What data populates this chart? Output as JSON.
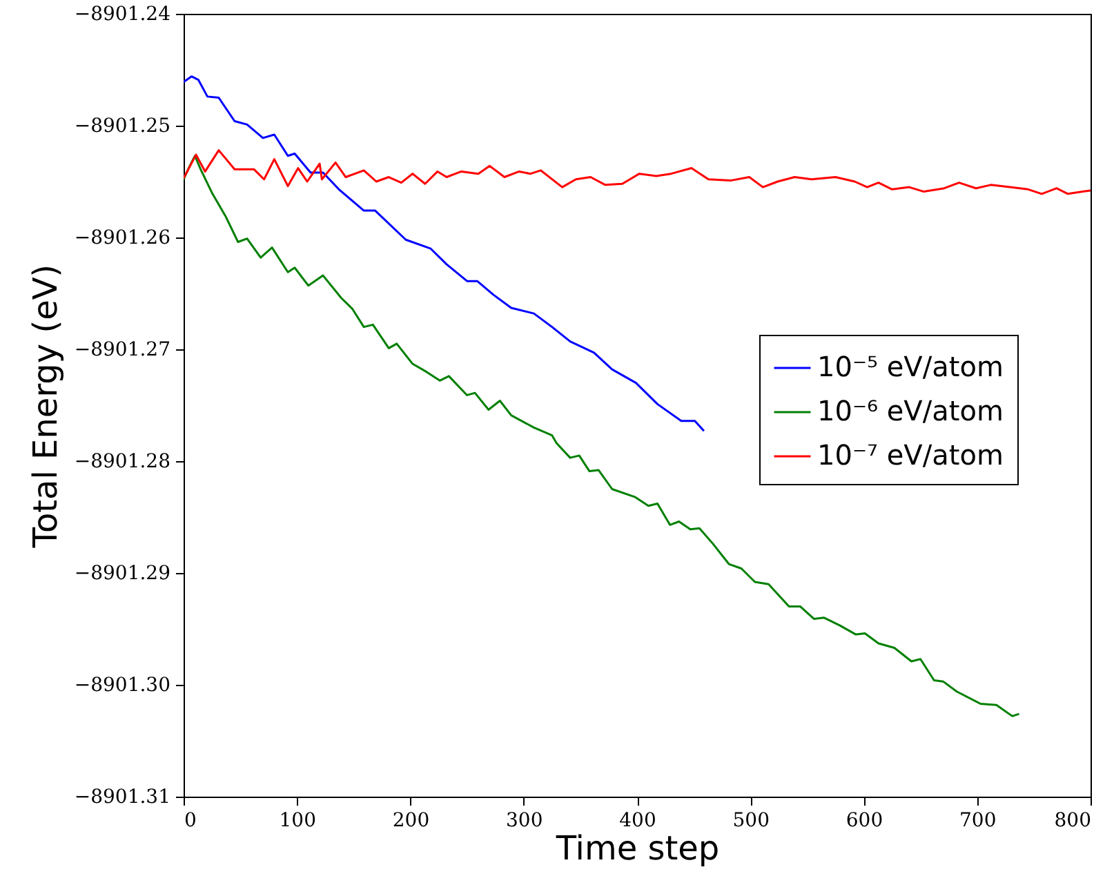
{
  "chart_data": {
    "type": "line",
    "xlabel": "Time step",
    "ylabel": "Total Energy (eV)",
    "xlim": [
      0,
      800
    ],
    "xticks": [
      0,
      100,
      200,
      300,
      400,
      500,
      600,
      700,
      800
    ],
    "ylim": [
      -8901.31,
      -8901.24
    ],
    "yticks": [
      {
        "value": -8901.31,
        "label": "−8901.31"
      },
      {
        "value": -8901.3,
        "label": "−8901.30"
      },
      {
        "value": -8901.29,
        "label": "−8901.29"
      },
      {
        "value": -8901.28,
        "label": "−8901.28"
      },
      {
        "value": -8901.27,
        "label": "−8901.27"
      },
      {
        "value": -8901.26,
        "label": "−8901.26"
      },
      {
        "value": -8901.25,
        "label": "−8901.25"
      },
      {
        "value": -8901.24,
        "label": "−8901.24"
      }
    ],
    "grid": false,
    "legend": "right",
    "marker": "none",
    "line_style": "solid",
    "series": [
      {
        "name": "10⁻⁵ eV/atom",
        "color": "#0000ff",
        "x": [
          0,
          7,
          13,
          21,
          31,
          45,
          56,
          70,
          80,
          92,
          98,
          112,
          123,
          137,
          159,
          169,
          196,
          218,
          232,
          250,
          259,
          273,
          289,
          309,
          325,
          341,
          362,
          378,
          399,
          418,
          439,
          451,
          459
        ],
        "values": [
          -8901.2461,
          -8901.2456,
          -8901.2459,
          -8901.2474,
          -8901.2475,
          -8901.2496,
          -8901.2499,
          -8901.2511,
          -8901.2508,
          -8901.2527,
          -8901.2525,
          -8901.2542,
          -8901.2542,
          -8901.2557,
          -8901.2576,
          -8901.2576,
          -8901.2602,
          -8901.261,
          -8901.2624,
          -8901.2639,
          -8901.2639,
          -8901.2651,
          -8901.2663,
          -8901.2668,
          -8901.268,
          -8901.2693,
          -8901.2703,
          -8901.2718,
          -8901.273,
          -8901.2749,
          -8901.2764,
          -8901.2764,
          -8901.2773
        ]
      },
      {
        "name": "10⁻⁶ eV/atom",
        "color": "#008000",
        "x": [
          0,
          5,
          10,
          15,
          25,
          37,
          48,
          56,
          68,
          78,
          92,
          98,
          110,
          123,
          139,
          149,
          159,
          167,
          181,
          188,
          202,
          214,
          226,
          234,
          250,
          257,
          269,
          279,
          289,
          309,
          325,
          329,
          341,
          349,
          358,
          366,
          378,
          398,
          410,
          418,
          429,
          437,
          447,
          455,
          467,
          481,
          492,
          504,
          516,
          534,
          544,
          556,
          565,
          579,
          593,
          601,
          613,
          627,
          642,
          650,
          662,
          670,
          682,
          703,
          717,
          731,
          737
        ],
        "values": [
          -8901.2548,
          -8901.2537,
          -8901.2527,
          -8901.2539,
          -8901.256,
          -8901.2581,
          -8901.2604,
          -8901.2601,
          -8901.2618,
          -8901.2609,
          -8901.2631,
          -8901.2627,
          -8901.2643,
          -8901.2634,
          -8901.2654,
          -8901.2664,
          -8901.268,
          -8901.2678,
          -8901.2699,
          -8901.2695,
          -8901.2713,
          -8901.272,
          -8901.2728,
          -8901.2724,
          -8901.2741,
          -8901.2739,
          -8901.2754,
          -8901.2746,
          -8901.2759,
          -8901.277,
          -8901.2777,
          -8901.2784,
          -8901.2797,
          -8901.2795,
          -8901.2809,
          -8901.2808,
          -8901.2825,
          -8901.2832,
          -8901.284,
          -8901.2838,
          -8901.2857,
          -8901.2854,
          -8901.2861,
          -8901.286,
          -8901.2874,
          -8901.2892,
          -8901.2896,
          -8901.2908,
          -8901.291,
          -8901.293,
          -8901.293,
          -8901.2941,
          -8901.294,
          -8901.2947,
          -8901.2955,
          -8901.2954,
          -8901.2963,
          -8901.2967,
          -8901.2979,
          -8901.2977,
          -8901.2996,
          -8901.2997,
          -8901.3006,
          -8901.3017,
          -8901.3018,
          -8901.3028,
          -8901.3026
        ]
      },
      {
        "name": "10⁻⁷ eV/atom",
        "color": "#ff0000",
        "x": [
          0,
          11,
          19,
          31,
          45,
          62,
          71,
          80,
          92,
          101,
          109,
          120,
          122,
          134,
          143,
          159,
          170,
          181,
          192,
          202,
          213,
          224,
          232,
          245,
          260,
          270,
          283,
          296,
          306,
          315,
          334,
          346,
          359,
          372,
          387,
          402,
          417,
          430,
          448,
          463,
          483,
          499,
          511,
          524,
          539,
          554,
          575,
          592,
          603,
          613,
          625,
          640,
          653,
          671,
          684,
          699,
          712,
          729,
          745,
          757,
          770,
          780,
          793,
          800
        ],
        "values": [
          -8901.2547,
          -8901.2526,
          -8901.2541,
          -8901.2522,
          -8901.2539,
          -8901.2539,
          -8901.2548,
          -8901.253,
          -8901.2554,
          -8901.2538,
          -8901.255,
          -8901.2534,
          -8901.2548,
          -8901.2533,
          -8901.2546,
          -8901.254,
          -8901.255,
          -8901.2546,
          -8901.2551,
          -8901.2543,
          -8901.2552,
          -8901.2541,
          -8901.2546,
          -8901.2541,
          -8901.2543,
          -8901.2536,
          -8901.2546,
          -8901.2541,
          -8901.2543,
          -8901.254,
          -8901.2555,
          -8901.2548,
          -8901.2546,
          -8901.2553,
          -8901.2552,
          -8901.2543,
          -8901.2545,
          -8901.2543,
          -8901.2538,
          -8901.2548,
          -8901.2549,
          -8901.2546,
          -8901.2555,
          -8901.255,
          -8901.2546,
          -8901.2548,
          -8901.2546,
          -8901.255,
          -8901.2555,
          -8901.2551,
          -8901.2557,
          -8901.2555,
          -8901.2559,
          -8901.2556,
          -8901.2551,
          -8901.2556,
          -8901.2553,
          -8901.2555,
          -8901.2557,
          -8901.2561,
          -8901.2556,
          -8901.2561,
          -8901.2559,
          -8901.2558
        ]
      }
    ]
  }
}
